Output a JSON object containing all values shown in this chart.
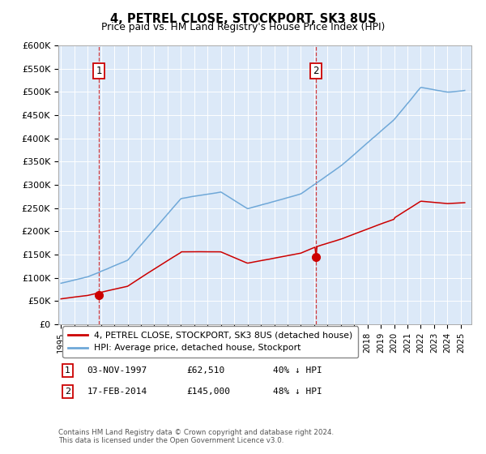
{
  "title": "4, PETREL CLOSE, STOCKPORT, SK3 8US",
  "subtitle": "Price paid vs. HM Land Registry's House Price Index (HPI)",
  "background_color": "#ffffff",
  "plot_bg_color": "#dce9f8",
  "ylabel_ticks": [
    "£0",
    "£50K",
    "£100K",
    "£150K",
    "£200K",
    "£250K",
    "£300K",
    "£350K",
    "£400K",
    "£450K",
    "£500K",
    "£550K",
    "£600K"
  ],
  "ytick_values": [
    0,
    50000,
    100000,
    150000,
    200000,
    250000,
    300000,
    350000,
    400000,
    450000,
    500000,
    550000,
    600000
  ],
  "sale1_date": 1997.84,
  "sale1_price": 62510,
  "sale1_label": "1",
  "sale2_date": 2014.12,
  "sale2_price": 145000,
  "sale2_label": "2",
  "sale1_row": "03-NOV-1997",
  "sale1_price_str": "£62,510",
  "sale1_hpi_str": "40% ↓ HPI",
  "sale2_row": "17-FEB-2014",
  "sale2_price_str": "£145,000",
  "sale2_hpi_str": "48% ↓ HPI",
  "hpi_color": "#6fa8d8",
  "sold_color": "#cc0000",
  "vline_color": "#cc0000",
  "legend_line1": "4, PETREL CLOSE, STOCKPORT, SK3 8US (detached house)",
  "legend_line2": "HPI: Average price, detached house, Stockport",
  "footer": "Contains HM Land Registry data © Crown copyright and database right 2024.\nThis data is licensed under the Open Government Licence v3.0.",
  "xlim": [
    1994.8,
    2025.8
  ],
  "ylim": [
    0,
    600000
  ]
}
